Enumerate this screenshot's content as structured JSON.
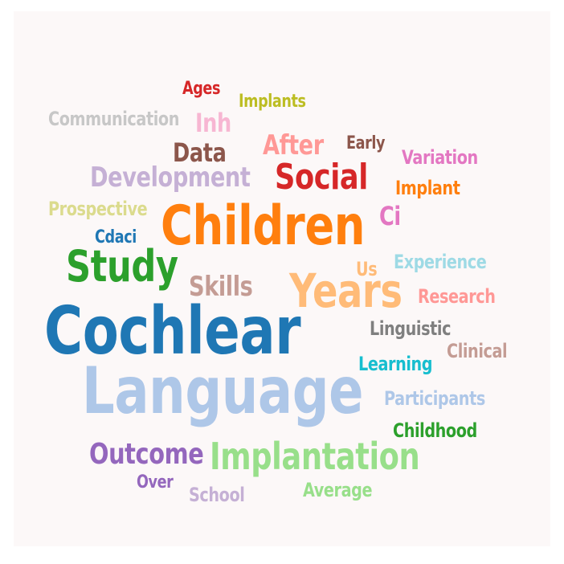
{
  "words": [
    {
      "key": "language",
      "text": "Language",
      "color": "#aec7e8"
    },
    {
      "key": "cochlear",
      "text": "Cochlear",
      "color": "#1f77b4"
    },
    {
      "key": "children",
      "text": "Children",
      "color": "#ff7f0e"
    },
    {
      "key": "years",
      "text": "Years",
      "color": "#ffbb78"
    },
    {
      "key": "implantation",
      "text": "Implantation",
      "color": "#98df8a"
    },
    {
      "key": "study",
      "text": "Study",
      "color": "#2ca02c"
    },
    {
      "key": "social",
      "text": "Social",
      "color": "#d62728"
    },
    {
      "key": "outcome",
      "text": "Outcome",
      "color": "#9467bd"
    },
    {
      "key": "development",
      "text": "Development",
      "color": "#c5b0d5"
    },
    {
      "key": "skills",
      "text": "Skills",
      "color": "#c49c94"
    },
    {
      "key": "after",
      "text": "After",
      "color": "#ff9896"
    },
    {
      "key": "data",
      "text": "Data",
      "color": "#8c564b"
    },
    {
      "key": "inh",
      "text": "Inh",
      "color": "#f7b6d2"
    },
    {
      "key": "ci",
      "text": "Ci",
      "color": "#e377c2"
    },
    {
      "key": "communication",
      "text": "Communication",
      "color": "#c7c7c7"
    },
    {
      "key": "implants",
      "text": "Implants",
      "color": "#bcbd22"
    },
    {
      "key": "ages",
      "text": "Ages",
      "color": "#d62728"
    },
    {
      "key": "early",
      "text": "Early",
      "color": "#8c564b"
    },
    {
      "key": "variation",
      "text": "Variation",
      "color": "#e377c2"
    },
    {
      "key": "implant",
      "text": "Implant",
      "color": "#ff7f0e"
    },
    {
      "key": "prospective",
      "text": "Prospective",
      "color": "#dbdb8d"
    },
    {
      "key": "cdaci",
      "text": "Cdaci",
      "color": "#1f77b4"
    },
    {
      "key": "us",
      "text": "Us",
      "color": "#ffbb78"
    },
    {
      "key": "experience",
      "text": "Experience",
      "color": "#9edae5"
    },
    {
      "key": "research",
      "text": "Research",
      "color": "#ff9896"
    },
    {
      "key": "linguistic",
      "text": "Linguistic",
      "color": "#7f7f7f"
    },
    {
      "key": "clinical",
      "text": "Clinical",
      "color": "#c49c94"
    },
    {
      "key": "learning",
      "text": "Learning",
      "color": "#17becf"
    },
    {
      "key": "participants",
      "text": "Participants",
      "color": "#aec7e8"
    },
    {
      "key": "childhood",
      "text": "Childhood",
      "color": "#2ca02c"
    },
    {
      "key": "over",
      "text": "Over",
      "color": "#9467bd"
    },
    {
      "key": "school",
      "text": "School",
      "color": "#c5b0d5"
    },
    {
      "key": "average",
      "text": "Average",
      "color": "#98df8a"
    }
  ]
}
